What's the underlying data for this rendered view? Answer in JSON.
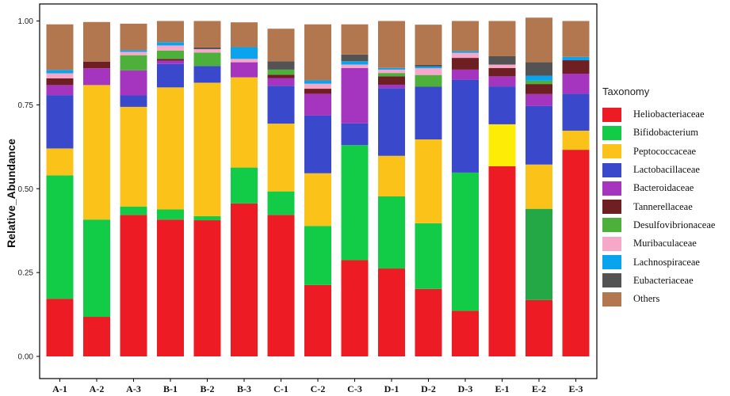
{
  "chart_data": {
    "type": "bar",
    "stacked": true,
    "ylabel": "Relative_Abundance",
    "xlabel": "",
    "ylim": [
      0,
      1
    ],
    "yticks": [
      "0.00",
      "0.25",
      "0.50",
      "0.75",
      "1.00"
    ],
    "grid": false,
    "legend_position": "right",
    "legend_title": "Taxonomy",
    "categories": [
      "A-1",
      "A-2",
      "A-3",
      "B-1",
      "B-2",
      "B-3",
      "C-1",
      "C-2",
      "C-3",
      "D-1",
      "D-2",
      "D-3",
      "E-1",
      "E-2",
      "E-3"
    ],
    "series": [
      {
        "name": "Heliobacteriaceae",
        "color": "#ED1C24",
        "values": [
          0.172,
          0.118,
          0.422,
          0.408,
          0.406,
          0.456,
          0.422,
          0.213,
          0.287,
          0.262,
          0.201,
          0.136,
          0.567,
          0.168,
          0.616
        ]
      },
      {
        "name": "Bifidobacterium",
        "color": "#12CC48",
        "values": [
          0.368,
          0.29,
          0.025,
          0.03,
          0.012,
          0.107,
          0.07,
          0.176,
          0.343,
          0.215,
          0.196,
          0.412,
          0.0,
          0.272,
          0.0
        ]
      },
      {
        "name": "Peptococcaceae",
        "color": "#FBC31A",
        "values": [
          0.08,
          0.401,
          0.297,
          0.364,
          0.398,
          0.269,
          0.202,
          0.157,
          0.0,
          0.121,
          0.25,
          0.0,
          0.0,
          0.132,
          0.057
        ]
      },
      {
        "name": "Lactobacillaceae",
        "color": "#3A48CC",
        "values": [
          0.159,
          0.0,
          0.034,
          0.07,
          0.05,
          0.0,
          0.113,
          0.172,
          0.065,
          0.202,
          0.157,
          0.277,
          0.113,
          0.175,
          0.11
        ]
      },
      {
        "name": "Bacteroidaceae",
        "color": "#A535BE",
        "values": [
          0.03,
          0.05,
          0.075,
          0.01,
          0.0,
          0.045,
          0.023,
          0.065,
          0.165,
          0.01,
          0.0,
          0.03,
          0.03,
          0.035,
          0.06
        ]
      },
      {
        "name": "Tannerellaceae",
        "color": "#6E1F22",
        "values": [
          0.02,
          0.02,
          0.0,
          0.005,
          0.0,
          0.0,
          0.01,
          0.015,
          0.0,
          0.025,
          0.0,
          0.035,
          0.025,
          0.03,
          0.04
        ]
      },
      {
        "name": "Desulfovibrionaceae",
        "color": "#4DB03A",
        "values": [
          0.0,
          0.0,
          0.045,
          0.025,
          0.04,
          0.0,
          0.015,
          0.0,
          0.0,
          0.01,
          0.035,
          0.0,
          0.0,
          0.01,
          0.0
        ]
      },
      {
        "name": "Muribaculaceae",
        "color": "#F7A8C8",
        "values": [
          0.015,
          0.0,
          0.01,
          0.015,
          0.01,
          0.01,
          0.0,
          0.015,
          0.01,
          0.01,
          0.02,
          0.015,
          0.01,
          0.0,
          0.0
        ]
      },
      {
        "name": "Lachnospiraceae",
        "color": "#0AA4EE",
        "values": [
          0.01,
          0.0,
          0.005,
          0.01,
          0.0,
          0.035,
          0.0,
          0.01,
          0.01,
          0.005,
          0.005,
          0.005,
          0.0,
          0.015,
          0.01
        ]
      },
      {
        "name": "Eubacteriaceae",
        "color": "#535353",
        "values": [
          0.0,
          0.0,
          0.0,
          0.0,
          0.005,
          0.0,
          0.025,
          0.0,
          0.02,
          0.0,
          0.005,
          0.0,
          0.025,
          0.04,
          0.0
        ]
      },
      {
        "name": "Others",
        "color": "#B3774F",
        "values": [
          0.136,
          0.118,
          0.079,
          0.063,
          0.079,
          0.074,
          0.097,
          0.167,
          0.09,
          0.14,
          0.12,
          0.09,
          0.0,
          0.133,
          0.107
        ]
      }
    ],
    "overrides": {
      "E-1": {
        "Bifidobacterium": "#FCEC06",
        "Others": "#B3774F"
      },
      "E-2": {
        "Bifidobacterium": "#24A846"
      }
    },
    "extra_segments": [
      {
        "category": "E-1",
        "after": "Heliobacteriaceae",
        "value": 0.125,
        "color": "#FCEC06"
      },
      {
        "category": "E-1",
        "after": "Eubacteriaceae",
        "value": 0.105,
        "color": "#B3774F"
      }
    ]
  }
}
